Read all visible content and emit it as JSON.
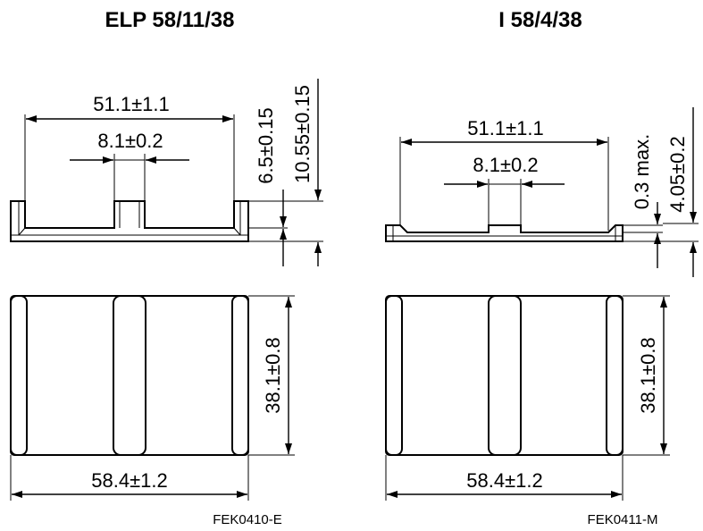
{
  "left": {
    "title": "ELP 58/11/38",
    "dim_width_inner": "51.1±1.1",
    "dim_slot": "8.1±0.2",
    "dim_height_a": "6.5±0.15",
    "dim_height_b": "10.55±0.15",
    "dim_depth": "38.1±0.8",
    "dim_width_outer": "58.4±1.2",
    "code": "FEK0410-E"
  },
  "right": {
    "title": "I 58/4/38",
    "dim_width_inner": "51.1±1.1",
    "dim_slot": "8.1±0.2",
    "dim_height_a": "0.3 max.",
    "dim_height_b": "4.05±0.2",
    "dim_depth": "38.1±0.8",
    "dim_width_outer": "58.4±1.2",
    "code": "FEK0411-M"
  }
}
